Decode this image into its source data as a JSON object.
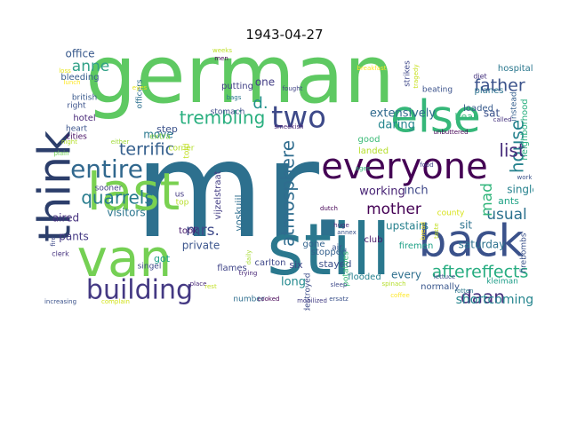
{
  "chart_data": {
    "type": "wordcloud",
    "title": "1943-04-27",
    "background": "#ffffff",
    "colormap": "viridis",
    "words": [
      {
        "text": "mr.",
        "weight": 1.0,
        "color": "#2d708e"
      },
      {
        "text": "german",
        "weight": 0.78,
        "color": "#5ec962"
      },
      {
        "text": "still",
        "weight": 0.7,
        "color": "#2a788e"
      },
      {
        "text": "everyone",
        "weight": 0.45,
        "color": "#440154"
      },
      {
        "text": "last",
        "weight": 0.5,
        "color": "#7ad151"
      },
      {
        "text": "van",
        "weight": 0.5,
        "color": "#75d054"
      },
      {
        "text": "back",
        "weight": 0.48,
        "color": "#3b528b"
      },
      {
        "text": "else",
        "weight": 0.45,
        "color": "#35b779"
      },
      {
        "text": "think",
        "weight": 0.42,
        "color": "#2c3e6b"
      },
      {
        "text": "building",
        "weight": 0.33,
        "color": "#443983"
      },
      {
        "text": "entire",
        "weight": 0.3,
        "color": "#31688e"
      },
      {
        "text": "two",
        "weight": 0.3,
        "color": "#3e4a89"
      },
      {
        "text": "trembling",
        "weight": 0.22,
        "color": "#29af7f"
      },
      {
        "text": "atmosphere",
        "weight": 0.2,
        "color": "#2f6c8e"
      },
      {
        "text": "quarrels",
        "weight": 0.2,
        "color": "#287c8e"
      },
      {
        "text": "aftereffects",
        "weight": 0.2,
        "color": "#27ad81"
      },
      {
        "text": "daan",
        "weight": 0.2,
        "color": "#46327e"
      },
      {
        "text": "house",
        "weight": 0.2,
        "color": "#26828e"
      },
      {
        "text": "father",
        "weight": 0.18,
        "color": "#3b528b"
      },
      {
        "text": "list",
        "weight": 0.2,
        "color": "#472d7b"
      },
      {
        "text": "terrific",
        "weight": 0.18,
        "color": "#355f8d"
      },
      {
        "text": "mother",
        "weight": 0.16,
        "color": "#440154"
      },
      {
        "text": "anne",
        "weight": 0.16,
        "color": "#30a187"
      },
      {
        "text": "d.",
        "weight": 0.16,
        "color": "#21918c"
      },
      {
        "text": "mrs.",
        "weight": 0.17,
        "color": "#3e4989"
      },
      {
        "text": "usual",
        "weight": 0.16,
        "color": "#2c718e"
      },
      {
        "text": "mad",
        "weight": 0.15,
        "color": "#31b57b"
      },
      {
        "text": "shortcomings",
        "weight": 0.14,
        "color": "#25858e"
      },
      {
        "text": "working",
        "weight": 0.12,
        "color": "#482475"
      },
      {
        "text": "inch",
        "weight": 0.12,
        "color": "#3f4889"
      },
      {
        "text": "extensively",
        "weight": 0.12,
        "color": "#306a8e"
      },
      {
        "text": "daring",
        "weight": 0.12,
        "color": "#24868e"
      },
      {
        "text": "upstairs",
        "weight": 0.12,
        "color": "#26818e"
      },
      {
        "text": "visitors",
        "weight": 0.12,
        "color": "#2b758e"
      },
      {
        "text": "office",
        "weight": 0.11,
        "color": "#38598c"
      },
      {
        "text": "saturday",
        "weight": 0.11,
        "color": "#2d718e"
      },
      {
        "text": "move",
        "weight": 0.11,
        "color": "#2a788e"
      },
      {
        "text": "private",
        "weight": 0.11,
        "color": "#3a548c"
      },
      {
        "text": "single",
        "weight": 0.1,
        "color": "#26828e"
      },
      {
        "text": "long",
        "weight": 0.11,
        "color": "#23898e"
      },
      {
        "text": "every",
        "weight": 0.11,
        "color": "#2e6f8e"
      },
      {
        "text": "one",
        "weight": 0.1,
        "color": "#433e85"
      },
      {
        "text": "sat",
        "weight": 0.1,
        "color": "#3b518b"
      },
      {
        "text": "sit",
        "weight": 0.1,
        "color": "#2c728e"
      },
      {
        "text": "stayed",
        "weight": 0.1,
        "color": "#3c4f8a"
      },
      {
        "text": "six",
        "weight": 0.1,
        "color": "#3f4788"
      },
      {
        "text": "pants",
        "weight": 0.1,
        "color": "#443983"
      },
      {
        "text": "aired",
        "weight": 0.1,
        "color": "#46317e"
      },
      {
        "text": "ants",
        "weight": 0.09,
        "color": "#20a386"
      },
      {
        "text": "hear",
        "weight": 0.09,
        "color": "#35b779"
      },
      {
        "text": "got",
        "weight": 0.09,
        "color": "#1fa088"
      },
      {
        "text": "step",
        "weight": 0.09,
        "color": "#3b528b"
      },
      {
        "text": "voskuijl",
        "weight": 0.09,
        "color": "#2e6e8e"
      },
      {
        "text": "vijzelstraat",
        "weight": 0.08,
        "color": "#433d84"
      },
      {
        "text": "neighborhood",
        "weight": 0.08,
        "color": "#29af7f"
      },
      {
        "text": "hospitalized",
        "weight": 0.08,
        "color": "#2a778e"
      },
      {
        "text": "carlton",
        "weight": 0.07,
        "color": "#3f4889"
      },
      {
        "text": "flames",
        "weight": 0.07,
        "color": "#404588"
      },
      {
        "text": "took",
        "weight": 0.07,
        "color": "#481b6d"
      },
      {
        "text": "putting",
        "weight": 0.07,
        "color": "#424186"
      },
      {
        "text": "stomach",
        "weight": 0.06,
        "color": "#3e4c8a"
      },
      {
        "text": "bleeding",
        "weight": 0.07,
        "color": "#365c8d"
      },
      {
        "text": "hotel",
        "weight": 0.07,
        "color": "#482878"
      },
      {
        "text": "british",
        "weight": 0.06,
        "color": "#38588c"
      },
      {
        "text": "right",
        "weight": 0.06,
        "color": "#3b528b"
      },
      {
        "text": "heart",
        "weight": 0.06,
        "color": "#3a538b"
      },
      {
        "text": "cities",
        "weight": 0.06,
        "color": "#471063"
      },
      {
        "text": "sooner",
        "weight": 0.06,
        "color": "#424086"
      },
      {
        "text": "officers",
        "weight": 0.06,
        "color": "#2d708e"
      },
      {
        "text": "extra",
        "weight": 0.05,
        "color": "#86d549"
      },
      {
        "text": "corner",
        "weight": 0.05,
        "color": "#b5de2b"
      },
      {
        "text": "told",
        "weight": 0.05,
        "color": "#c2df23"
      },
      {
        "text": "top",
        "weight": 0.05,
        "color": "#b8de29"
      },
      {
        "text": "us",
        "weight": 0.05,
        "color": "#443a83"
      },
      {
        "text": "singel",
        "weight": 0.05,
        "color": "#3e4989"
      },
      {
        "text": "club",
        "weight": 0.06,
        "color": "#481769"
      },
      {
        "text": "good",
        "weight": 0.06,
        "color": "#3aba76"
      },
      {
        "text": "gone",
        "weight": 0.06,
        "color": "#33638d"
      },
      {
        "text": "landed",
        "weight": 0.06,
        "color": "#b5de2b"
      },
      {
        "text": "stopped",
        "weight": 0.06,
        "color": "#34608d"
      },
      {
        "text": "firemen",
        "weight": 0.06,
        "color": "#1fa187"
      },
      {
        "text": "flooded",
        "weight": 0.06,
        "color": "#27808e"
      },
      {
        "text": "normally",
        "weight": 0.06,
        "color": "#39568c"
      },
      {
        "text": "destroyed",
        "weight": 0.05,
        "color": "#3d4d8a"
      },
      {
        "text": "air",
        "weight": 0.05,
        "color": "#3a548c"
      },
      {
        "text": "county",
        "weight": 0.05,
        "color": "#d8e219"
      },
      {
        "text": "beating",
        "weight": 0.05,
        "color": "#3b528b"
      },
      {
        "text": "loaded",
        "weight": 0.06,
        "color": "#375a8c"
      },
      {
        "text": "planes",
        "weight": 0.06,
        "color": "#2c728e"
      },
      {
        "text": "instead",
        "weight": 0.05,
        "color": "#355e8d"
      },
      {
        "text": "strikes",
        "weight": 0.05,
        "color": "#3f4889"
      },
      {
        "text": "kleiman",
        "weight": 0.05,
        "color": "#1f9e89"
      },
      {
        "text": "firebombs",
        "weight": 0.05,
        "color": "#3b528b"
      },
      {
        "text": "potatoes",
        "weight": 0.05,
        "color": "#3aba76"
      },
      {
        "text": "unbuttered",
        "weight": 0.04,
        "color": "#440154"
      },
      {
        "text": "diet",
        "weight": 0.04,
        "color": "#46327e"
      },
      {
        "text": "breakfast",
        "weight": 0.04,
        "color": "#fde725"
      },
      {
        "text": "tragedy",
        "weight": 0.04,
        "color": "#c8e020"
      },
      {
        "text": "fought",
        "weight": 0.04,
        "color": "#414487"
      },
      {
        "text": "bags",
        "weight": 0.04,
        "color": "#2a788e"
      },
      {
        "text": "smeekish",
        "weight": 0.04,
        "color": "#482475"
      },
      {
        "text": "eyes",
        "weight": 0.04,
        "color": "#e5e419"
      },
      {
        "text": "lunch",
        "weight": 0.04,
        "color": "#fde725"
      },
      {
        "text": "men",
        "weight": 0.04,
        "color": "#440154"
      },
      {
        "text": "weeks",
        "weight": 0.04,
        "color": "#bddf26"
      },
      {
        "text": "night",
        "weight": 0.04,
        "color": "#b5de2b"
      },
      {
        "text": "either",
        "weight": 0.04,
        "color": "#a0da39"
      },
      {
        "text": "plain",
        "weight": 0.04,
        "color": "#73d056"
      },
      {
        "text": "clerk",
        "weight": 0.05,
        "color": "#46337f"
      },
      {
        "text": "fire",
        "weight": 0.04,
        "color": "#3e4a89"
      },
      {
        "text": "increasing",
        "weight": 0.04,
        "color": "#3b528b"
      },
      {
        "text": "complain",
        "weight": 0.04,
        "color": "#d2e21b"
      },
      {
        "text": "number",
        "weight": 0.05,
        "color": "#2e6e8e"
      },
      {
        "text": "place",
        "weight": 0.04,
        "color": "#482878"
      },
      {
        "text": "rest",
        "weight": 0.04,
        "color": "#c2df23"
      },
      {
        "text": "trying",
        "weight": 0.04,
        "color": "#482677"
      },
      {
        "text": "daily",
        "weight": 0.04,
        "color": "#a8db34"
      },
      {
        "text": "cooked",
        "weight": 0.04,
        "color": "#440154"
      },
      {
        "text": "mobilized",
        "weight": 0.04,
        "color": "#433d84"
      },
      {
        "text": "ersatz",
        "weight": 0.04,
        "color": "#3b528b"
      },
      {
        "text": "sleep",
        "weight": 0.04,
        "color": "#3e4a89"
      },
      {
        "text": "huge",
        "weight": 0.04,
        "color": "#482878"
      },
      {
        "text": "annex",
        "weight": 0.04,
        "color": "#3b528b"
      },
      {
        "text": "food",
        "weight": 0.04,
        "color": "#424186"
      },
      {
        "text": "bread",
        "weight": 0.04,
        "color": "#fde725"
      },
      {
        "text": "taste",
        "weight": 0.04,
        "color": "#c2df23"
      },
      {
        "text": "lettuce",
        "weight": 0.04,
        "color": "#3e4989"
      },
      {
        "text": "rotten",
        "weight": 0.04,
        "color": "#2a788e"
      },
      {
        "text": "coffee",
        "weight": 0.04,
        "color": "#fde725"
      },
      {
        "text": "called",
        "weight": 0.04,
        "color": "#46337f"
      },
      {
        "text": "work",
        "weight": 0.04,
        "color": "#3b528b"
      },
      {
        "text": "spinach",
        "weight": 0.04,
        "color": "#b5de2b"
      },
      {
        "text": "dutch",
        "weight": 0.04,
        "color": "#440154"
      },
      {
        "text": "ages",
        "weight": 0.04,
        "color": "#35b779"
      },
      {
        "text": "loss",
        "weight": 0.04,
        "color": "#e5e419"
      }
    ]
  }
}
